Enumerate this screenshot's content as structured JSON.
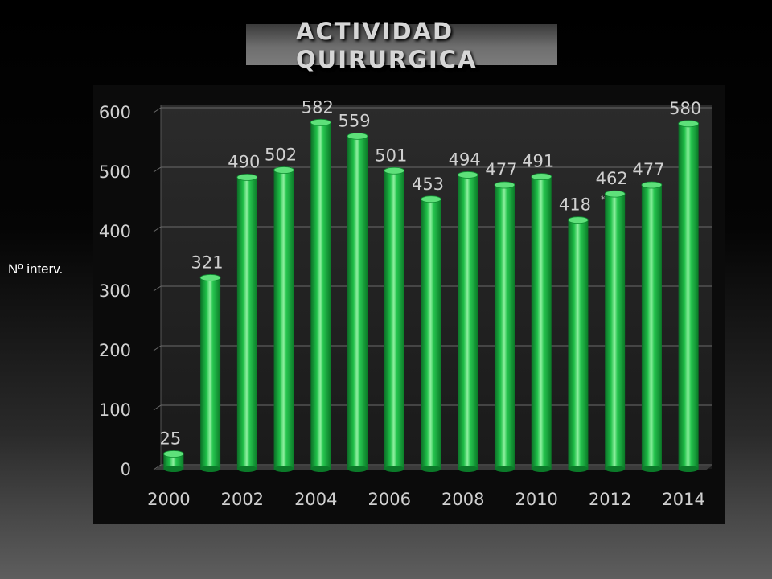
{
  "title": {
    "line1": "ACTIVIDAD",
    "line2": "QUIRURGICA"
  },
  "ylabel": "Nº interv.",
  "colors": {
    "bar": "#15a53b",
    "bar_highlight": "#7be68d",
    "text": "#d0d0d0"
  },
  "chart_data": {
    "type": "bar",
    "title": "ACTIVIDAD QUIRURGICA",
    "xlabel": "",
    "ylabel": "Nº interv.",
    "categories": [
      "2000",
      "2001",
      "2002",
      "2003",
      "2004",
      "2005",
      "2006",
      "2007",
      "2008",
      "2009",
      "2010",
      "2011",
      "2012",
      "2013",
      "2014"
    ],
    "values": [
      25,
      321,
      490,
      502,
      582,
      559,
      501,
      453,
      494,
      477,
      491,
      418,
      462,
      477,
      580
    ],
    "xtick_labels": [
      "2000",
      "2002",
      "2004",
      "2006",
      "2008",
      "2010",
      "2012",
      "2014"
    ],
    "yticks": [
      0,
      100,
      200,
      300,
      400,
      500,
      600
    ],
    "ylim": [
      0,
      600
    ],
    "grid": true,
    "legend": "none",
    "annotations": [
      {
        "text": "*",
        "near_category": "2011"
      }
    ]
  }
}
